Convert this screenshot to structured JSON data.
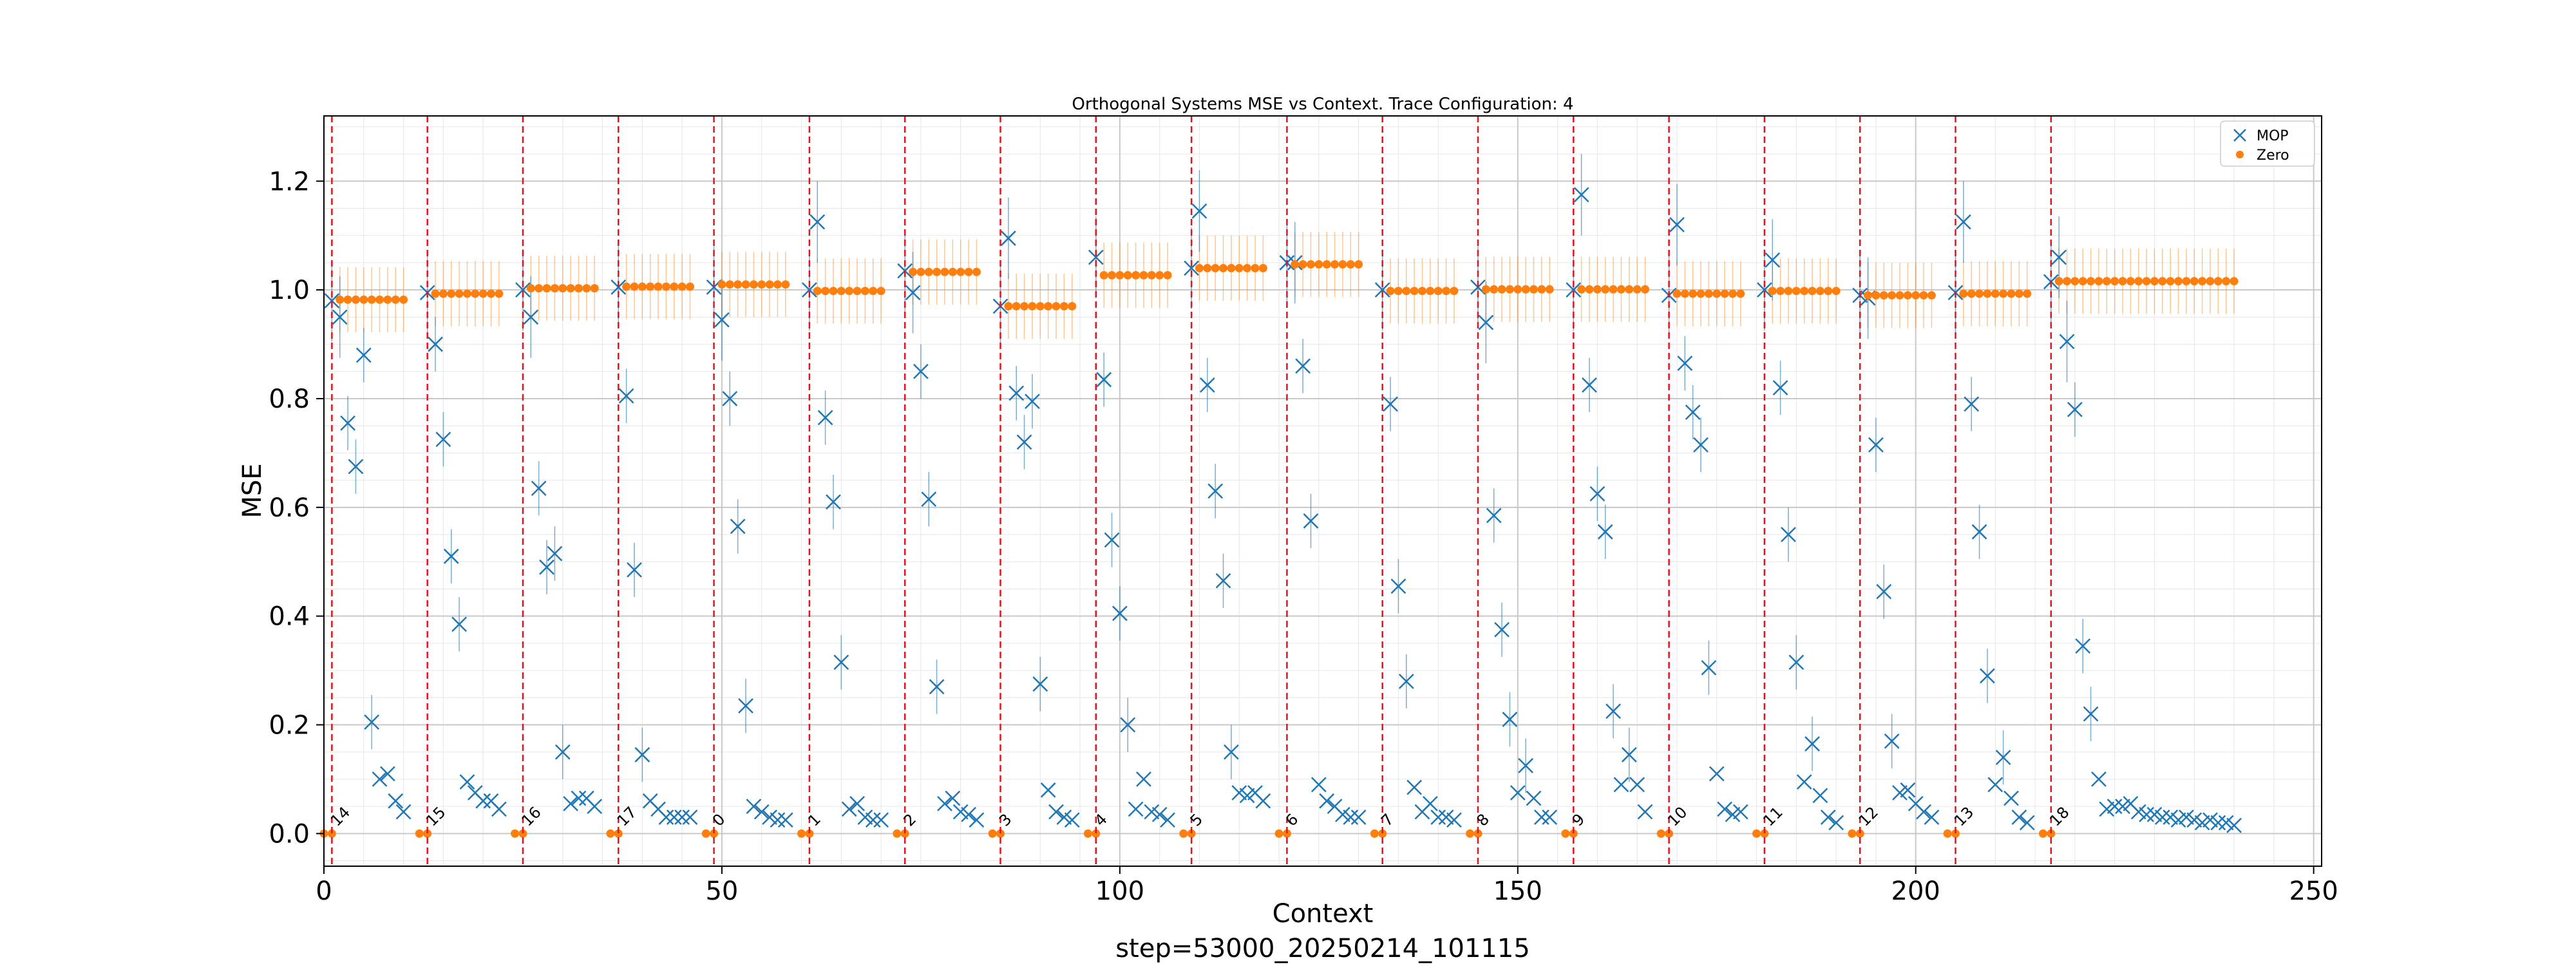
{
  "chart_data": {
    "type": "scatter",
    "title": "Orthogonal Systems MSE vs Context. Trace Configuration: 4",
    "xlabel": "Context",
    "ylabel": "MSE",
    "footer": "step=53000_20250214_101115",
    "xlim": [
      0,
      251
    ],
    "ylim": [
      -0.06,
      1.32
    ],
    "x_ticks": [
      0,
      50,
      100,
      150,
      200,
      250
    ],
    "y_ticks": [
      0.0,
      0.2,
      0.4,
      0.6,
      0.8,
      1.0,
      1.2
    ],
    "x_tick_labels": [
      "0",
      "50",
      "100",
      "150",
      "200",
      "250"
    ],
    "y_tick_labels": [
      "0.0",
      "0.2",
      "0.4",
      "0.6",
      "0.8",
      "1.0",
      "1.2"
    ],
    "grid": true,
    "legend_position": "top-right",
    "legend": [
      {
        "name": "MOP",
        "marker": "x",
        "color": "#1f77b4"
      },
      {
        "name": "Zero",
        "marker": "circle",
        "color": "#ff7f0e"
      }
    ],
    "segments": [
      {
        "start": 1,
        "label": "14",
        "zero": 0.982,
        "mop": [
          0.98,
          0.95,
          0.755,
          0.675,
          0.88,
          0.205,
          0.1,
          0.11,
          0.06,
          0.04
        ]
      },
      {
        "start": 13,
        "label": "15",
        "zero": 0.993,
        "mop": [
          0.995,
          0.9,
          0.725,
          0.51,
          0.385,
          0.095,
          0.075,
          0.06,
          0.06,
          0.045
        ]
      },
      {
        "start": 25,
        "label": "16",
        "zero": 1.003,
        "mop": [
          1.0,
          0.95,
          0.635,
          0.49,
          0.515,
          0.15,
          0.055,
          0.065,
          0.065,
          0.05
        ]
      },
      {
        "start": 37,
        "label": "17",
        "zero": 1.006,
        "mop": [
          1.005,
          0.805,
          0.485,
          0.145,
          0.06,
          0.045,
          0.03,
          0.03,
          0.03,
          0.03
        ]
      },
      {
        "start": 49,
        "label": "0",
        "zero": 1.01,
        "mop": [
          1.005,
          0.945,
          0.8,
          0.565,
          0.235,
          0.05,
          0.04,
          0.03,
          0.025,
          0.025
        ]
      },
      {
        "start": 61,
        "label": "1",
        "zero": 0.998,
        "mop": [
          1.0,
          1.125,
          0.765,
          0.61,
          0.315,
          0.045,
          0.055,
          0.03,
          0.025,
          0.025
        ]
      },
      {
        "start": 73,
        "label": "2",
        "zero": 1.033,
        "mop": [
          1.035,
          0.995,
          0.85,
          0.615,
          0.27,
          0.055,
          0.065,
          0.04,
          0.035,
          0.025
        ]
      },
      {
        "start": 85,
        "label": "3",
        "zero": 0.97,
        "mop": [
          0.97,
          1.095,
          0.81,
          0.72,
          0.795,
          0.275,
          0.08,
          0.04,
          0.03,
          0.025
        ]
      },
      {
        "start": 97,
        "label": "4",
        "zero": 1.027,
        "mop": [
          1.06,
          0.835,
          0.54,
          0.405,
          0.2,
          0.045,
          0.1,
          0.04,
          0.035,
          0.025
        ]
      },
      {
        "start": 109,
        "label": "5",
        "zero": 1.04,
        "mop": [
          1.04,
          1.145,
          0.825,
          0.63,
          0.465,
          0.15,
          0.075,
          0.07,
          0.075,
          0.06
        ]
      },
      {
        "start": 121,
        "label": "6",
        "zero": 1.047,
        "mop": [
          1.05,
          1.05,
          0.86,
          0.575,
          0.09,
          0.06,
          0.05,
          0.035,
          0.03,
          0.03
        ]
      },
      {
        "start": 133,
        "label": "7",
        "zero": 0.998,
        "mop": [
          1.0,
          0.79,
          0.455,
          0.28,
          0.085,
          0.04,
          0.055,
          0.03,
          0.03,
          0.025
        ]
      },
      {
        "start": 145,
        "label": "8",
        "zero": 1.001,
        "mop": [
          1.005,
          0.94,
          0.585,
          0.375,
          0.21,
          0.075,
          0.125,
          0.065,
          0.03,
          0.03
        ]
      },
      {
        "start": 157,
        "label": "9",
        "zero": 1.001,
        "mop": [
          1.0,
          1.175,
          0.825,
          0.625,
          0.555,
          0.225,
          0.09,
          0.145,
          0.09,
          0.04
        ]
      },
      {
        "start": 169,
        "label": "10",
        "zero": 0.993,
        "mop": [
          0.99,
          1.12,
          0.865,
          0.775,
          0.715,
          0.305,
          0.11,
          0.045,
          0.035,
          0.04
        ]
      },
      {
        "start": 181,
        "label": "11",
        "zero": 0.998,
        "mop": [
          1.0,
          1.055,
          0.82,
          0.55,
          0.315,
          0.095,
          0.165,
          0.07,
          0.03,
          0.02
        ]
      },
      {
        "start": 193,
        "label": "12",
        "zero": 0.99,
        "mop": [
          0.99,
          0.985,
          0.715,
          0.445,
          0.17,
          0.075,
          0.08,
          0.055,
          0.04,
          0.03
        ]
      },
      {
        "start": 205,
        "label": "13",
        "zero": 0.993,
        "mop": [
          0.995,
          1.125,
          0.79,
          0.555,
          0.29,
          0.09,
          0.14,
          0.065,
          0.03,
          0.02
        ]
      },
      {
        "start": 217,
        "label": "18",
        "zero": 1.016,
        "mop": [
          1.015,
          1.06,
          0.905,
          0.78,
          0.345,
          0.22,
          0.1,
          0.045,
          0.05,
          0.05,
          0.055,
          0.04,
          0.035,
          0.035,
          0.03,
          0.03,
          0.025,
          0.03,
          0.025,
          0.02,
          0.025,
          0.02,
          0.02,
          0.015
        ]
      }
    ]
  }
}
